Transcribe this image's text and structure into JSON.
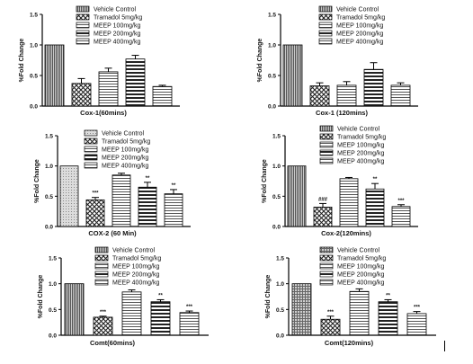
{
  "legend_labels": [
    "Vehicle Control",
    "Tramadol 5mg/kg",
    "MEEP 100mg/kg",
    "MEEP 200mg/kg",
    "MEEP 400mg/kg"
  ],
  "chart_data": [
    {
      "type": "bar",
      "title": "Cox-1(60mins)",
      "ylabel": "%Fold Change",
      "ylim": [
        0,
        1.5
      ],
      "yticks": [
        "0.0",
        "0.5",
        "1.0",
        "1.5"
      ],
      "categories": [
        "Vehicle Control",
        "Tramadol 5mg/kg",
        "MEEP 100mg/kg",
        "MEEP 200mg/kg",
        "MEEP 400mg/kg"
      ],
      "values": [
        1.0,
        0.37,
        0.56,
        0.77,
        0.32
      ],
      "errors": [
        0,
        0.08,
        0.06,
        0.06,
        0.02
      ],
      "annotations": [
        "",
        "",
        "",
        "",
        ""
      ]
    },
    {
      "type": "bar",
      "title": "Cox-1 (120mins)",
      "ylabel": "%Fold Change",
      "ylim": [
        0,
        1.5
      ],
      "yticks": [
        "0.0",
        "0.5",
        "1.0",
        "1.5"
      ],
      "categories": [
        "Vehicle Control",
        "Tramadol 5mg/kg",
        "MEEP 100mg/kg",
        "MEEP 200mg/kg",
        "MEEP 400mg/kg"
      ],
      "values": [
        1.0,
        0.33,
        0.34,
        0.6,
        0.34
      ],
      "errors": [
        0,
        0.05,
        0.06,
        0.11,
        0.04
      ],
      "annotations": [
        "",
        "",
        "",
        "",
        ""
      ]
    },
    {
      "type": "bar",
      "title": "COX-2 (60 Min)",
      "ylabel": "%Fold Change",
      "ylim": [
        0,
        1.5
      ],
      "yticks": [
        "0.0",
        "0.5",
        "1.0",
        "1.5"
      ],
      "categories": [
        "Vehicle Control",
        "Tramadol 5mg/kg",
        "MEEP 100mg/kg",
        "MEEP 200mg/kg",
        "MEEP 400mg/kg"
      ],
      "values": [
        1.0,
        0.44,
        0.85,
        0.65,
        0.54
      ],
      "errors": [
        0,
        0.04,
        0.03,
        0.08,
        0.07
      ],
      "annotations": [
        "",
        "***",
        "",
        "**",
        "**"
      ]
    },
    {
      "type": "bar",
      "title": "Cox-2(120mins)",
      "ylabel": "%Fold Change",
      "ylim": [
        0,
        1.5
      ],
      "yticks": [
        "0.0",
        "0.5",
        "1.0",
        "1.5"
      ],
      "categories": [
        "Vehicle Control",
        "Tramadol 5mg/kg",
        "MEEP 100mg/kg",
        "MEEP 200mg/kg",
        "MEEP 400mg/kg"
      ],
      "values": [
        1.0,
        0.32,
        0.79,
        0.62,
        0.33
      ],
      "errors": [
        0,
        0.06,
        0.02,
        0.09,
        0.03
      ],
      "annotations": [
        "",
        "###",
        "",
        "**",
        "***"
      ]
    },
    {
      "type": "bar",
      "title": "Comt(60mins)",
      "ylabel": "%Fold Change",
      "ylim": [
        0,
        1.5
      ],
      "yticks": [
        "0.0",
        "0.5",
        "1.0",
        "1.5"
      ],
      "categories": [
        "Vehicle Control",
        "Tramadol 5mg/kg",
        "MEEP 100mg/kg",
        "MEEP 200mg/kg",
        "MEEP 400mg/kg"
      ],
      "values": [
        1.0,
        0.35,
        0.84,
        0.65,
        0.44
      ],
      "errors": [
        0,
        0.02,
        0.04,
        0.04,
        0.03
      ],
      "annotations": [
        "",
        "***",
        "",
        "**",
        "***"
      ]
    },
    {
      "type": "bar",
      "title": "Comt(120mins)",
      "ylabel": "%Fold Change",
      "ylim": [
        0,
        1.5
      ],
      "yticks": [
        "0.0",
        "0.5",
        "1.0",
        "1.5"
      ],
      "categories": [
        "Vehicle Control",
        "Tramadol 5mg/kg",
        "MEEP 100mg/kg",
        "MEEP 200mg/kg",
        "MEEP 400mg/kg"
      ],
      "values": [
        1.0,
        0.31,
        0.85,
        0.65,
        0.42
      ],
      "errors": [
        0,
        0.06,
        0.05,
        0.04,
        0.04
      ],
      "annotations": [
        "",
        "***",
        "",
        "**",
        "***"
      ]
    }
  ]
}
